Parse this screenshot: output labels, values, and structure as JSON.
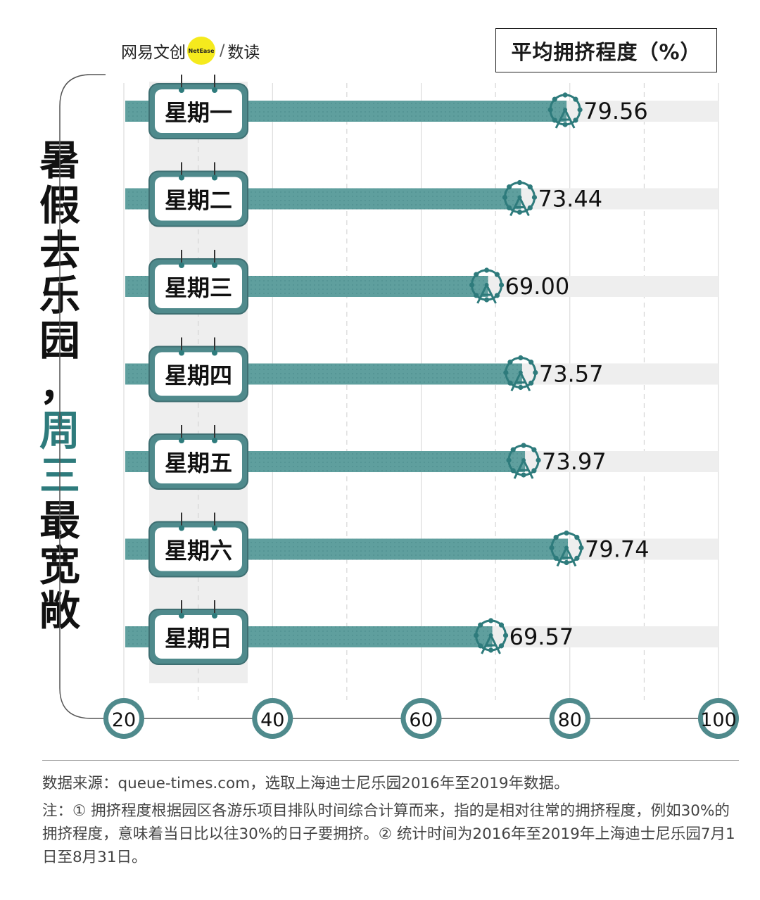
{
  "brand": {
    "name": "网易文创",
    "badge": "NetEase",
    "sub": "数读"
  },
  "unit_label": "平均拥挤程度（%）",
  "headline": {
    "part1": "暑假去乐园，",
    "accent": "周三",
    "part2": "最宽敞"
  },
  "chart_data": {
    "type": "bar",
    "orientation": "horizontal",
    "categories": [
      "星期一",
      "星期二",
      "星期三",
      "星期四",
      "星期五",
      "星期六",
      "星期日"
    ],
    "values": [
      79.56,
      73.44,
      69.0,
      73.57,
      73.97,
      79.74,
      69.57
    ],
    "value_labels": [
      "79.56",
      "73.44",
      "69.00",
      "73.57",
      "73.97",
      "79.74",
      "69.57"
    ],
    "xlim": [
      20,
      100
    ],
    "xticks": [
      20,
      40,
      60,
      80,
      100
    ],
    "xlabel": "",
    "ylabel": "",
    "grid": true,
    "colors": {
      "bar": "#5f9f9e",
      "track": "#eeeeee",
      "accent": "#2e7b7c",
      "label_box_border": "#3e6f72",
      "label_box_fill": "#4f8a8c"
    }
  },
  "footer": {
    "source": "数据来源：queue-times.com，选取上海迪士尼乐园2016年至2019年数据。",
    "note": "注：① 拥挤程度根据园区各游乐项目排队时间综合计算而来，指的是相对往常的拥挤程度，例如30%的拥挤程度，意味着当日比以往30%的日子要拥挤。② 统计时间为2016年至2019年上海迪士尼乐园7月1日至8月31日。"
  }
}
